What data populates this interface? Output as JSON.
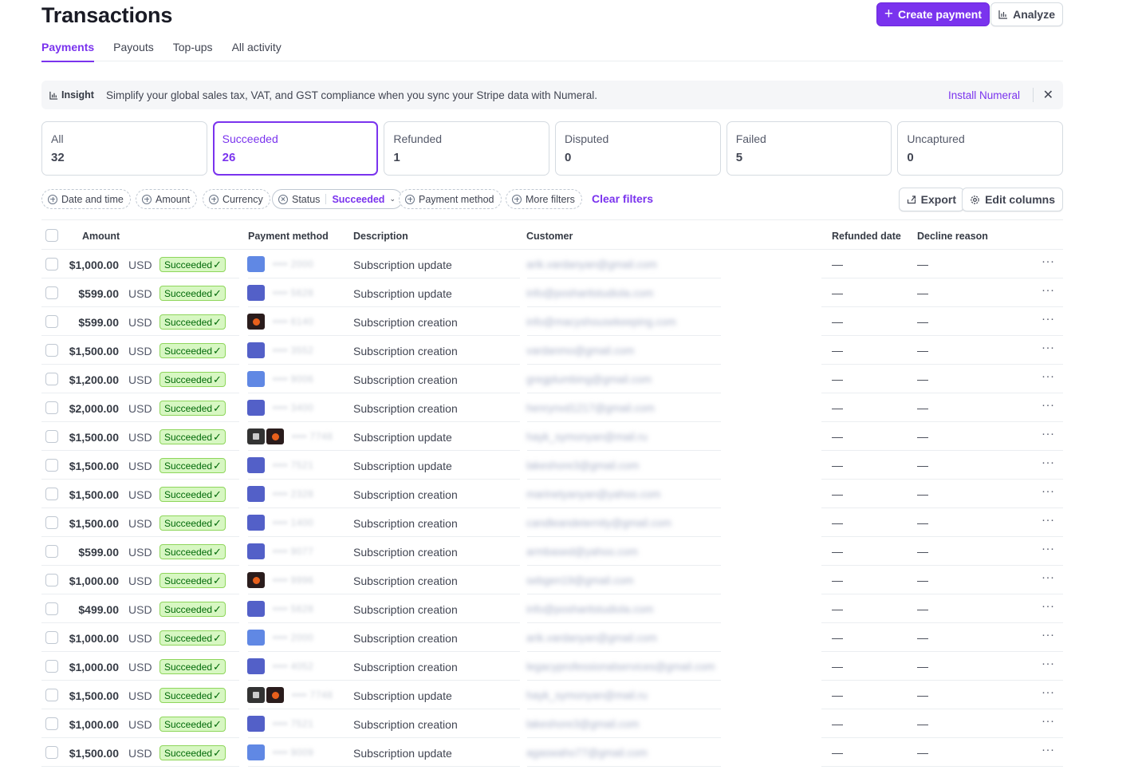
{
  "page": {
    "title": "Transactions",
    "create_button": "Create payment",
    "analyze_button": "Analyze"
  },
  "tabs": [
    {
      "label": "Payments",
      "active": true
    },
    {
      "label": "Payouts",
      "active": false
    },
    {
      "label": "Top-ups",
      "active": false
    },
    {
      "label": "All activity",
      "active": false
    }
  ],
  "insight": {
    "tag": "Insight",
    "message": "Simplify your global sales tax, VAT, and GST compliance when you sync your Stripe data with Numeral.",
    "link": "Install Numeral"
  },
  "status_cards": [
    {
      "label": "All",
      "count": "32"
    },
    {
      "label": "Succeeded",
      "count": "26",
      "active": true
    },
    {
      "label": "Refunded",
      "count": "1"
    },
    {
      "label": "Disputed",
      "count": "0"
    },
    {
      "label": "Failed",
      "count": "5"
    },
    {
      "label": "Uncaptured",
      "count": "0"
    }
  ],
  "filters": {
    "date": "Date and time",
    "amount": "Amount",
    "currency": "Currency",
    "status_label": "Status",
    "status_value": "Succeeded",
    "payment_method": "Payment method",
    "more": "More filters",
    "clear": "Clear filters",
    "export": "Export",
    "edit_columns": "Edit columns"
  },
  "columns": {
    "amount": "Amount",
    "payment_method": "Payment method",
    "description": "Description",
    "customer": "Customer",
    "refunded_date": "Refunded date",
    "decline_reason": "Decline reason"
  },
  "rows": [
    {
      "amount": "$1,000.00",
      "currency": "USD",
      "status": "Succeeded",
      "cards": [
        "blue"
      ],
      "last4": "•••• 2000",
      "description": "Subscription update",
      "customer": "arik.vardanyan@gmail.com",
      "refunded": "—",
      "decline": "—"
    },
    {
      "amount": "$599.00",
      "currency": "USD",
      "status": "Succeeded",
      "cards": [
        "navy"
      ],
      "last4": "•••• 5628",
      "description": "Subscription update",
      "customer": "info@posharitstudiola.com",
      "refunded": "—",
      "decline": "—"
    },
    {
      "amount": "$599.00",
      "currency": "USD",
      "status": "Succeeded",
      "cards": [
        "mc"
      ],
      "last4": "•••• 6140",
      "description": "Subscription creation",
      "customer": "info@macyshousekeeping.com",
      "refunded": "—",
      "decline": "—"
    },
    {
      "amount": "$1,500.00",
      "currency": "USD",
      "status": "Succeeded",
      "cards": [
        "navy"
      ],
      "last4": "•••• 3552",
      "description": "Subscription creation",
      "customer": "vardanmo@gmail.com",
      "refunded": "—",
      "decline": "—"
    },
    {
      "amount": "$1,200.00",
      "currency": "USD",
      "status": "Succeeded",
      "cards": [
        "blue"
      ],
      "last4": "•••• 9006",
      "description": "Subscription creation",
      "customer": "gregplumbing@gmail.com",
      "refunded": "—",
      "decline": "—"
    },
    {
      "amount": "$2,000.00",
      "currency": "USD",
      "status": "Succeeded",
      "cards": [
        "navy"
      ],
      "last4": "•••• 3400",
      "description": "Subscription creation",
      "customer": "henrynvd1217@gmail.com",
      "refunded": "—",
      "decline": "—"
    },
    {
      "amount": "$1,500.00",
      "currency": "USD",
      "status": "Succeeded",
      "cards": [
        "wallet",
        "mc"
      ],
      "last4": "•••• 7748",
      "description": "Subscription update",
      "customer": "hayk_symonyan@mail.ru",
      "refunded": "—",
      "decline": "—"
    },
    {
      "amount": "$1,500.00",
      "currency": "USD",
      "status": "Succeeded",
      "cards": [
        "navy"
      ],
      "last4": "•••• 7521",
      "description": "Subscription update",
      "customer": "lakeshore3@gmail.com",
      "refunded": "—",
      "decline": "—"
    },
    {
      "amount": "$1,500.00",
      "currency": "USD",
      "status": "Succeeded",
      "cards": [
        "navy"
      ],
      "last4": "•••• 2328",
      "description": "Subscription creation",
      "customer": "marinetyanyan@yahoo.com",
      "refunded": "—",
      "decline": "—"
    },
    {
      "amount": "$1,500.00",
      "currency": "USD",
      "status": "Succeeded",
      "cards": [
        "navy"
      ],
      "last4": "•••• 1400",
      "description": "Subscription creation",
      "customer": "candleandeternity@gmail.com",
      "refunded": "—",
      "decline": "—"
    },
    {
      "amount": "$599.00",
      "currency": "USD",
      "status": "Succeeded",
      "cards": [
        "navy"
      ],
      "last4": "•••• 9077",
      "description": "Subscription creation",
      "customer": "armbased@yahoo.com",
      "refunded": "—",
      "decline": "—"
    },
    {
      "amount": "$1,000.00",
      "currency": "USD",
      "status": "Succeeded",
      "cards": [
        "mc"
      ],
      "last4": "•••• 9996",
      "description": "Subscription creation",
      "customer": "sebgen19@gmail.com",
      "refunded": "—",
      "decline": "—"
    },
    {
      "amount": "$499.00",
      "currency": "USD",
      "status": "Succeeded",
      "cards": [
        "navy"
      ],
      "last4": "•••• 5628",
      "description": "Subscription creation",
      "customer": "info@posharitstudiola.com",
      "refunded": "—",
      "decline": "—"
    },
    {
      "amount": "$1,000.00",
      "currency": "USD",
      "status": "Succeeded",
      "cards": [
        "blue"
      ],
      "last4": "•••• 2000",
      "description": "Subscription creation",
      "customer": "arik.vardanyan@gmail.com",
      "refunded": "—",
      "decline": "—"
    },
    {
      "amount": "$1,000.00",
      "currency": "USD",
      "status": "Succeeded",
      "cards": [
        "navy"
      ],
      "last4": "•••• 4052",
      "description": "Subscription creation",
      "customer": "legacyprofessionalservices@gmail.com",
      "refunded": "—",
      "decline": "—"
    },
    {
      "amount": "$1,500.00",
      "currency": "USD",
      "status": "Succeeded",
      "cards": [
        "wallet",
        "mc"
      ],
      "last4": "•••• 7748",
      "description": "Subscription update",
      "customer": "hayk_symonyan@mail.ru",
      "refunded": "—",
      "decline": "—"
    },
    {
      "amount": "$1,000.00",
      "currency": "USD",
      "status": "Succeeded",
      "cards": [
        "navy"
      ],
      "last4": "•••• 7521",
      "description": "Subscription creation",
      "customer": "lakeshore3@gmail.com",
      "refunded": "—",
      "decline": "—"
    },
    {
      "amount": "$1,500.00",
      "currency": "USD",
      "status": "Succeeded",
      "cards": [
        "blue"
      ],
      "last4": "•••• 9009",
      "description": "Subscription update",
      "customer": "agaswaho77@gmail.com",
      "refunded": "—",
      "decline": "—"
    }
  ],
  "row_actions_label": "···"
}
